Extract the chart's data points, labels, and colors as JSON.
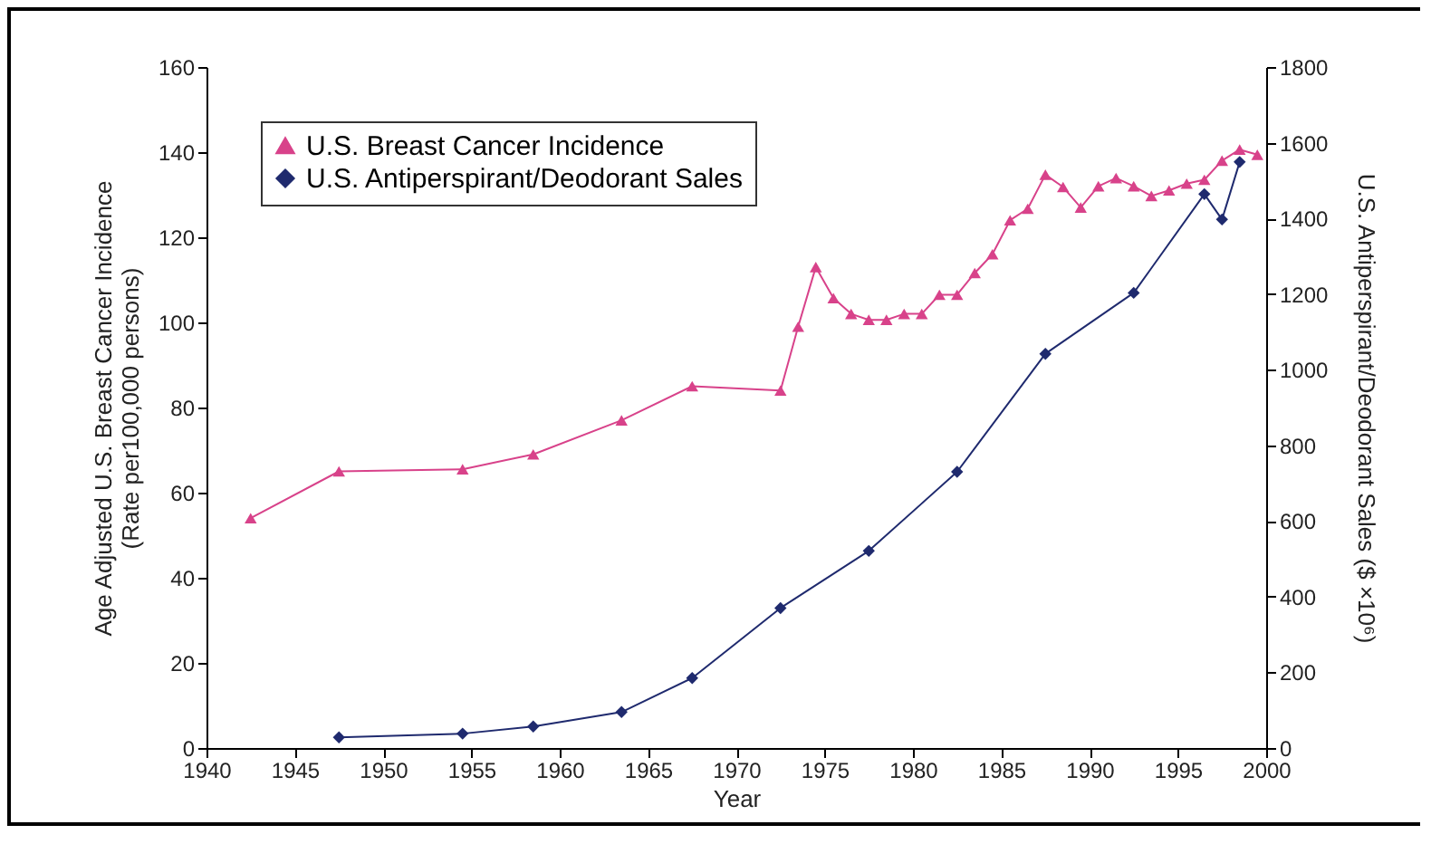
{
  "chart_data": {
    "type": "line",
    "xlabel": "Year",
    "ylabel": "Age Adjusted U.S. Breast Cancer Incidence\n(Rate per100,000 persons)",
    "y2label": "U.S. Antiperspirant/Deodorant Sales ($   ×10⁶)",
    "xlim": [
      1940,
      2000
    ],
    "xticks": [
      1940,
      1945,
      1950,
      1955,
      1960,
      1965,
      1970,
      1975,
      1980,
      1985,
      1990,
      1995,
      2000
    ],
    "ylim": [
      0,
      160
    ],
    "yticks": [
      0,
      20,
      40,
      60,
      80,
      100,
      120,
      140,
      160
    ],
    "y2lim": [
      0,
      1800
    ],
    "y2ticks": [
      0,
      200,
      400,
      600,
      800,
      1000,
      1200,
      1400,
      1600,
      1800
    ],
    "grid": false,
    "legend": "top left",
    "series": [
      {
        "name": "U.S. Breast Cancer Incidence",
        "color": "#d8428a",
        "marker": "triangle",
        "x": [
          1942.5,
          1947.5,
          1954.5,
          1958.5,
          1963.5,
          1967.5,
          1972.5,
          1973.5,
          1974.5,
          1975.5,
          1976.5,
          1977.5,
          1978.5,
          1979.5,
          1980.5,
          1981.5,
          1982.5,
          1983.5,
          1984.5,
          1985.5,
          1986.5,
          1987.5,
          1988.5,
          1989.5,
          1990.5,
          1991.5,
          1992.5,
          1993.5,
          1994.5,
          1995.5,
          1996.5,
          1997.5,
          1998.5,
          1999.5
        ],
        "values": [
          54,
          65,
          65.5,
          69,
          77,
          85,
          84,
          99,
          113,
          105.7,
          102,
          100.6,
          100.6,
          102,
          102,
          106.5,
          106.5,
          111.6,
          116,
          124,
          126.7,
          134.7,
          131.8,
          127,
          132,
          133.9,
          132,
          129.7,
          131,
          132.6,
          133.5,
          138,
          140.6,
          139.4
        ]
      },
      {
        "name": "U.S. Antiperspirant/Deodorant Sales",
        "color": "#1f2a6e",
        "marker": "diamond",
        "axis": "y2",
        "x": [
          1947.5,
          1954.5,
          1958.5,
          1963.5,
          1967.5,
          1972.5,
          1977.5,
          1982.5,
          1987.5,
          1992.5,
          1996.5,
          1997.5,
          1998.5
        ],
        "values": [
          28,
          38,
          57,
          95,
          185,
          370,
          521,
          730,
          1042,
          1203,
          1464,
          1397,
          1549
        ]
      }
    ]
  }
}
